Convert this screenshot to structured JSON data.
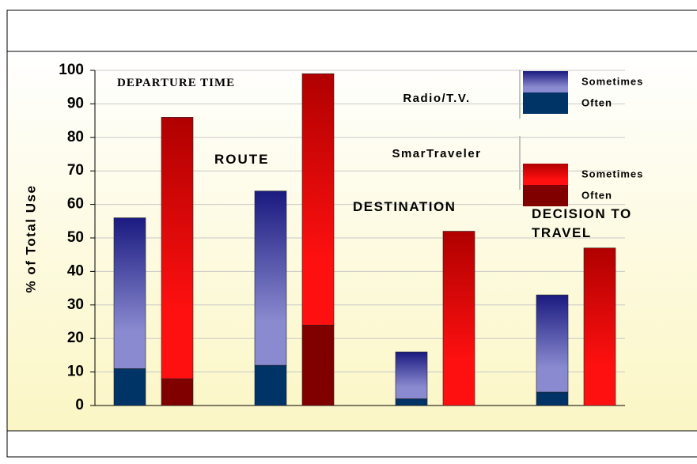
{
  "chart_data": {
    "type": "bar",
    "y_label": "% of Total Use",
    "categories": [
      "DEPARTURE TIME",
      "ROUTE",
      "DESTINATION",
      "DECISION TO TRAVEL"
    ],
    "groups": [
      {
        "name": "Radio/T.V.",
        "series": [
          {
            "name": "Often",
            "color": "#003366",
            "values": [
              11,
              12,
              2,
              4
            ]
          },
          {
            "name": "Sometimes",
            "color": "#1a1a80",
            "gradient": true,
            "values": [
              45,
              52,
              14,
              29
            ]
          }
        ]
      },
      {
        "name": "SmarTraveler",
        "series": [
          {
            "name": "Often",
            "color": "#800000",
            "values": [
              8,
              24,
              0,
              0
            ]
          },
          {
            "name": "Sometimes",
            "color": "#b00000",
            "gradient": true,
            "values": [
              78,
              75,
              52,
              47
            ]
          }
        ]
      }
    ],
    "ylim": [
      0,
      100
    ],
    "yticks": [
      0,
      10,
      20,
      30,
      40,
      50,
      60,
      70,
      80,
      90,
      100
    ],
    "grid": true
  }
}
